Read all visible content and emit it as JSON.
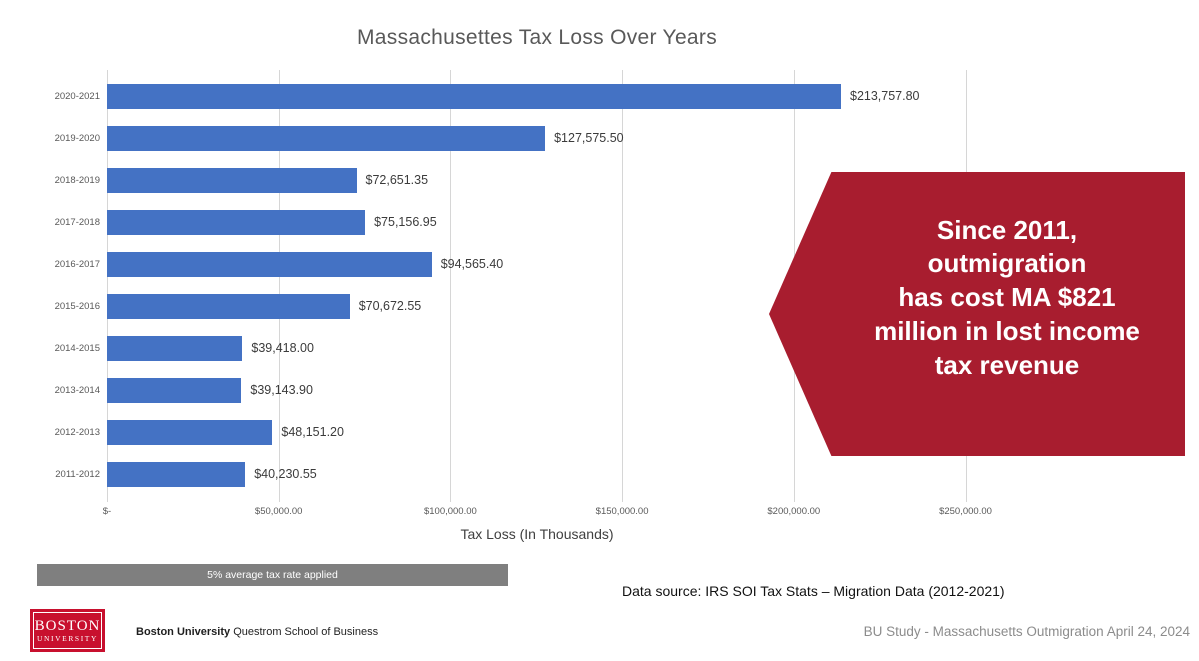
{
  "title": "Massachusettes Tax Loss Over Years",
  "chart_data": {
    "type": "bar",
    "orientation": "horizontal",
    "title": "Massachusettes Tax Loss Over Years",
    "categories": [
      "2020-2021",
      "2019-2020",
      "2018-2019",
      "2017-2018",
      "2016-2017",
      "2015-2016",
      "2014-2015",
      "2013-2014",
      "2012-2013",
      "2011-2012"
    ],
    "values": [
      213757.8,
      127575.5,
      72651.35,
      75156.95,
      94565.4,
      70672.55,
      39418.0,
      39143.9,
      48151.2,
      40230.55
    ],
    "value_labels": [
      "$213,757.80",
      "$127,575.50",
      "$72,651.35",
      "$75,156.95",
      "$94,565.40",
      "$70,672.55",
      "$39,418.00",
      "$39,143.90",
      "$48,151.20",
      "$40,230.55"
    ],
    "xlabel": "Tax Loss (In Thousands)",
    "ylabel": "",
    "xlim": [
      0,
      250000
    ],
    "x_ticks": [
      0,
      50000,
      100000,
      150000,
      200000,
      250000
    ],
    "x_tick_labels": [
      "$-",
      "$50,000.00",
      "$100,000.00",
      "$150,000.00",
      "$200,000.00",
      "$250,000.00"
    ],
    "grid": "vertical",
    "legend": "none",
    "bar_color": "#4472C4",
    "gridline_color": "#D6D6D6"
  },
  "callout": {
    "lines": [
      "Since 2011,",
      "outmigration",
      "has cost MA $821",
      "million in lost income",
      "tax revenue"
    ],
    "bg_color": "#A81D2F",
    "text_color": "#FFFFFF"
  },
  "tax_note": "5% average tax rate applied",
  "data_source": "Data source: IRS SOI Tax Stats – Migration Data (2012-2021)",
  "footer": {
    "logo": {
      "line1": "BOSTON",
      "line2": "UNIVERSITY",
      "bg_color": "#C8102E"
    },
    "left_bold": "Boston University",
    "left_rest": " Questrom School of Business",
    "right": "BU Study - Massachusetts Outmigration April 24, 2024"
  }
}
